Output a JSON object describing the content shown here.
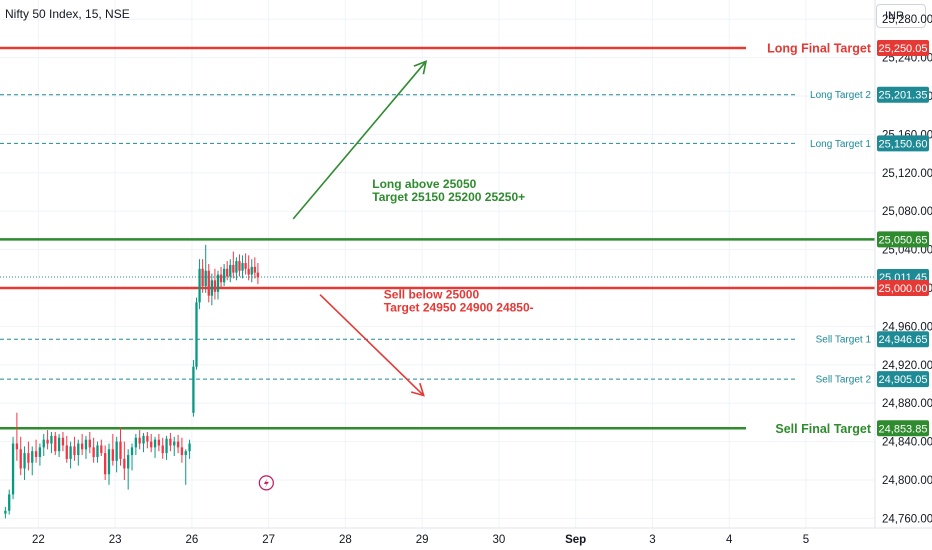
{
  "header": {
    "symbol_title": "Nifty 50 Index, 15, NSE",
    "currency": "INR"
  },
  "colors": {
    "red": "#e53935",
    "green": "#2e8b2e",
    "teal": "#1e8a96",
    "price_tag": "#1e8a96"
  },
  "chart_data": {
    "type": "candlestick",
    "y_axis": {
      "ticks": [
        "25,280.00",
        "25,240.00",
        "25,200.00",
        "25,160.00",
        "25,120.00",
        "25,080.00",
        "25,040.00",
        "25,000.00",
        "24,960.00",
        "24,920.00",
        "24,880.00",
        "24,840.00",
        "24,800.00",
        "24,760.00"
      ],
      "tick_values": [
        25280,
        25240,
        25200,
        25160,
        25120,
        25080,
        25040,
        25000,
        24960,
        24920,
        24880,
        24840,
        24800,
        24760
      ],
      "range": [
        24750,
        25300
      ]
    },
    "x_axis": {
      "labels": [
        "22",
        "23",
        "26",
        "27",
        "28",
        "29",
        "30",
        "Sep",
        "3",
        "4",
        "5"
      ],
      "label_positions": [
        0.5,
        1.5,
        2.5,
        3.5,
        4.5,
        5.5,
        6.5,
        7.5,
        8.5,
        9.5,
        10.5
      ],
      "range": [
        0,
        11.4
      ]
    },
    "levels": [
      {
        "label": "Long Final Target",
        "value": 25250.05,
        "value_text": "25,250.05",
        "style": "solid",
        "color": "red",
        "tag_color": "red",
        "label_size": "large"
      },
      {
        "label": "Long Target 2",
        "value": 25201.35,
        "value_text": "25,201.35",
        "style": "dashed",
        "color": "teal",
        "tag_color": "teal",
        "label_size": "small"
      },
      {
        "label": "Long Target 1",
        "value": 25150.6,
        "value_text": "25,150.60",
        "style": "dashed",
        "color": "teal",
        "tag_color": "teal",
        "label_size": "small"
      },
      {
        "label": "",
        "value": 25050.65,
        "value_text": "25,050.65",
        "style": "solid",
        "color": "green",
        "tag_color": "green",
        "label_size": "large"
      },
      {
        "label": "",
        "value": 25011.45,
        "value_text": "25,011.45",
        "style": "dotted",
        "color": "teal",
        "tag_color": "teal",
        "label_size": "small"
      },
      {
        "label": "",
        "value": 25000.0,
        "value_text": "25,000.00",
        "style": "solid",
        "color": "red",
        "tag_color": "red",
        "label_size": "large"
      },
      {
        "label": "Sell Target 1",
        "value": 24946.65,
        "value_text": "24,946.65",
        "style": "dashed",
        "color": "teal",
        "tag_color": "teal",
        "label_size": "small"
      },
      {
        "label": "Sell Target 2",
        "value": 24905.05,
        "value_text": "24,905.05",
        "style": "dashed",
        "color": "teal",
        "tag_color": "teal",
        "label_size": "small"
      },
      {
        "label": "Sell Final Target",
        "value": 24853.85,
        "value_text": "24,853.85",
        "style": "solid",
        "color": "green",
        "tag_color": "green",
        "label_size": "large"
      }
    ],
    "annotations": [
      {
        "lines": [
          "Long above 25050",
          "Target 25150 25200 25250+"
        ],
        "color": "green",
        "x": 4.85,
        "y": 25104
      },
      {
        "lines": [
          "Sell below 25000",
          "Target 24950 24900 24850-"
        ],
        "color": "red",
        "x": 5.0,
        "y": 24989
      }
    ],
    "arrows": [
      {
        "color": "green",
        "x1": 3.82,
        "y1": 25072,
        "x2": 5.55,
        "y2": 25236
      },
      {
        "color": "red",
        "x1": 4.17,
        "y1": 24993,
        "x2": 5.52,
        "y2": 24888
      }
    ],
    "candles": [
      {
        "x": 0.07,
        "o": 24765,
        "h": 24772,
        "l": 24760,
        "c": 24768
      },
      {
        "x": 0.12,
        "o": 24768,
        "h": 24790,
        "l": 24764,
        "c": 24785
      },
      {
        "x": 0.17,
        "o": 24785,
        "h": 24845,
        "l": 24780,
        "c": 24838
      },
      {
        "x": 0.22,
        "o": 24838,
        "h": 24870,
        "l": 24820,
        "c": 24832
      },
      {
        "x": 0.27,
        "o": 24832,
        "h": 24845,
        "l": 24805,
        "c": 24812
      },
      {
        "x": 0.32,
        "o": 24812,
        "h": 24835,
        "l": 24800,
        "c": 24828
      },
      {
        "x": 0.37,
        "o": 24828,
        "h": 24840,
        "l": 24810,
        "c": 24818
      },
      {
        "x": 0.42,
        "o": 24818,
        "h": 24835,
        "l": 24805,
        "c": 24830
      },
      {
        "x": 0.47,
        "o": 24830,
        "h": 24842,
        "l": 24818,
        "c": 24824
      },
      {
        "x": 0.52,
        "o": 24824,
        "h": 24838,
        "l": 24815,
        "c": 24834
      },
      {
        "x": 0.57,
        "o": 24834,
        "h": 24848,
        "l": 24825,
        "c": 24842
      },
      {
        "x": 0.62,
        "o": 24842,
        "h": 24852,
        "l": 24832,
        "c": 24838
      },
      {
        "x": 0.67,
        "o": 24838,
        "h": 24850,
        "l": 24828,
        "c": 24846
      },
      {
        "x": 0.72,
        "o": 24846,
        "h": 24850,
        "l": 24826,
        "c": 24830
      },
      {
        "x": 0.77,
        "o": 24830,
        "h": 24848,
        "l": 24824,
        "c": 24844
      },
      {
        "x": 0.82,
        "o": 24844,
        "h": 24850,
        "l": 24830,
        "c": 24836
      },
      {
        "x": 0.87,
        "o": 24836,
        "h": 24846,
        "l": 24818,
        "c": 24822
      },
      {
        "x": 0.92,
        "o": 24822,
        "h": 24840,
        "l": 24812,
        "c": 24835
      },
      {
        "x": 0.97,
        "o": 24835,
        "h": 24845,
        "l": 24820,
        "c": 24826
      },
      {
        "x": 1.02,
        "o": 24826,
        "h": 24842,
        "l": 24815,
        "c": 24838
      },
      {
        "x": 1.07,
        "o": 24838,
        "h": 24848,
        "l": 24826,
        "c": 24832
      },
      {
        "x": 1.12,
        "o": 24832,
        "h": 24846,
        "l": 24822,
        "c": 24842
      },
      {
        "x": 1.17,
        "o": 24842,
        "h": 24850,
        "l": 24828,
        "c": 24834
      },
      {
        "x": 1.22,
        "o": 24834,
        "h": 24844,
        "l": 24818,
        "c": 24824
      },
      {
        "x": 1.27,
        "o": 24824,
        "h": 24840,
        "l": 24818,
        "c": 24836
      },
      {
        "x": 1.32,
        "o": 24836,
        "h": 24842,
        "l": 24825,
        "c": 24828
      },
      {
        "x": 1.37,
        "o": 24828,
        "h": 24836,
        "l": 24800,
        "c": 24806
      },
      {
        "x": 1.42,
        "o": 24806,
        "h": 24838,
        "l": 24795,
        "c": 24832
      },
      {
        "x": 1.47,
        "o": 24832,
        "h": 24848,
        "l": 24815,
        "c": 24820
      },
      {
        "x": 1.52,
        "o": 24820,
        "h": 24845,
        "l": 24808,
        "c": 24840
      },
      {
        "x": 1.57,
        "o": 24840,
        "h": 24855,
        "l": 24815,
        "c": 24822
      },
      {
        "x": 1.62,
        "o": 24822,
        "h": 24840,
        "l": 24800,
        "c": 24812
      },
      {
        "x": 1.67,
        "o": 24812,
        "h": 24832,
        "l": 24790,
        "c": 24826
      },
      {
        "x": 1.72,
        "o": 24826,
        "h": 24838,
        "l": 24810,
        "c": 24834
      },
      {
        "x": 1.77,
        "o": 24834,
        "h": 24848,
        "l": 24826,
        "c": 24844
      },
      {
        "x": 1.82,
        "o": 24844,
        "h": 24852,
        "l": 24832,
        "c": 24838
      },
      {
        "x": 1.87,
        "o": 24838,
        "h": 24849,
        "l": 24829,
        "c": 24846
      },
      {
        "x": 1.92,
        "o": 24846,
        "h": 24850,
        "l": 24833,
        "c": 24840
      },
      {
        "x": 1.97,
        "o": 24840,
        "h": 24848,
        "l": 24829,
        "c": 24834
      },
      {
        "x": 2.02,
        "o": 24834,
        "h": 24845,
        "l": 24823,
        "c": 24842
      },
      {
        "x": 2.07,
        "o": 24842,
        "h": 24848,
        "l": 24830,
        "c": 24836
      },
      {
        "x": 2.12,
        "o": 24836,
        "h": 24844,
        "l": 24822,
        "c": 24828
      },
      {
        "x": 2.17,
        "o": 24828,
        "h": 24846,
        "l": 24821,
        "c": 24843
      },
      {
        "x": 2.22,
        "o": 24843,
        "h": 24849,
        "l": 24830,
        "c": 24836
      },
      {
        "x": 2.27,
        "o": 24836,
        "h": 24845,
        "l": 24825,
        "c": 24840
      },
      {
        "x": 2.32,
        "o": 24840,
        "h": 24847,
        "l": 24828,
        "c": 24834
      },
      {
        "x": 2.37,
        "o": 24834,
        "h": 24844,
        "l": 24818,
        "c": 24826
      },
      {
        "x": 2.42,
        "o": 24826,
        "h": 24832,
        "l": 24795,
        "c": 24830
      },
      {
        "x": 2.47,
        "o": 24830,
        "h": 24842,
        "l": 24822,
        "c": 24838
      },
      {
        "x": 2.52,
        "o": 24870,
        "h": 24925,
        "l": 24866,
        "c": 24918
      },
      {
        "x": 2.56,
        "o": 24918,
        "h": 24990,
        "l": 24915,
        "c": 24985
      },
      {
        "x": 2.6,
        "o": 24985,
        "h": 25030,
        "l": 24978,
        "c": 25020
      },
      {
        "x": 2.64,
        "o": 25020,
        "h": 25030,
        "l": 24995,
        "c": 25002
      },
      {
        "x": 2.68,
        "o": 25002,
        "h": 25045,
        "l": 24995,
        "c": 25018
      },
      {
        "x": 2.72,
        "o": 25018,
        "h": 25025,
        "l": 24985,
        "c": 24992
      },
      {
        "x": 2.76,
        "o": 24992,
        "h": 25015,
        "l": 24982,
        "c": 25008
      },
      {
        "x": 2.8,
        "o": 25008,
        "h": 25020,
        "l": 24988,
        "c": 24996
      },
      {
        "x": 2.84,
        "o": 24996,
        "h": 25018,
        "l": 24988,
        "c": 25014
      },
      {
        "x": 2.88,
        "o": 25014,
        "h": 25022,
        "l": 25000,
        "c": 25006
      },
      {
        "x": 2.92,
        "o": 25006,
        "h": 25025,
        "l": 25002,
        "c": 25020
      },
      {
        "x": 2.96,
        "o": 25020,
        "h": 25028,
        "l": 25008,
        "c": 25012
      },
      {
        "x": 3.0,
        "o": 25012,
        "h": 25030,
        "l": 25006,
        "c": 25024
      },
      {
        "x": 3.04,
        "o": 25024,
        "h": 25038,
        "l": 25010,
        "c": 25016
      },
      {
        "x": 3.08,
        "o": 25016,
        "h": 25032,
        "l": 25008,
        "c": 25028
      },
      {
        "x": 3.12,
        "o": 25028,
        "h": 25035,
        "l": 25012,
        "c": 25018
      },
      {
        "x": 3.16,
        "o": 25018,
        "h": 25034,
        "l": 25010,
        "c": 25026
      },
      {
        "x": 3.2,
        "o": 25026,
        "h": 25036,
        "l": 25014,
        "c": 25020
      },
      {
        "x": 3.24,
        "o": 25020,
        "h": 25034,
        "l": 25008,
        "c": 25014
      },
      {
        "x": 3.28,
        "o": 25014,
        "h": 25030,
        "l": 25006,
        "c": 25022
      },
      {
        "x": 3.32,
        "o": 25022,
        "h": 25032,
        "l": 25010,
        "c": 25016
      },
      {
        "x": 3.36,
        "o": 25016,
        "h": 25026,
        "l": 25004,
        "c": 25011
      }
    ],
    "event_icon": {
      "x": 3.47,
      "y": 24797
    }
  }
}
